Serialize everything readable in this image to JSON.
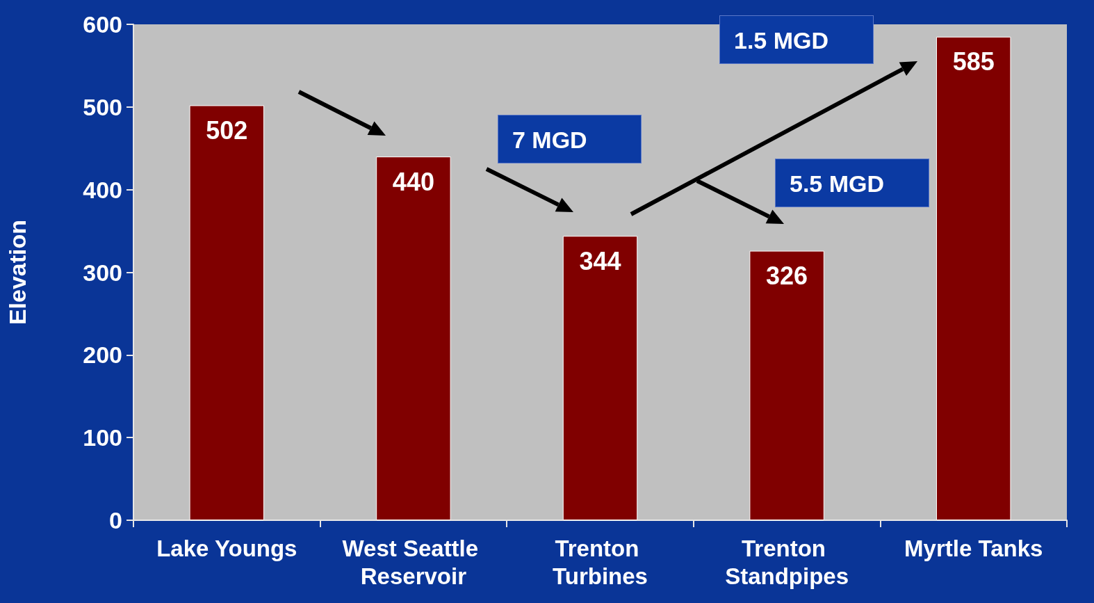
{
  "chart_data": {
    "type": "bar",
    "ylabel": "Elevation",
    "categories": [
      "Lake Youngs",
      "West Seattle Reservoir",
      "Trenton Turbines",
      "Trenton Standpipes",
      "Myrtle Tanks"
    ],
    "values": [
      502,
      440,
      344,
      326,
      585
    ],
    "color": "#800000",
    "ylim": [
      0,
      600
    ],
    "yticks": [
      0,
      100,
      200,
      300,
      400,
      500,
      600
    ],
    "data_labels": true,
    "annotations": [
      "7 MGD",
      "5.5 MGD",
      "1.5 MGD"
    ]
  }
}
